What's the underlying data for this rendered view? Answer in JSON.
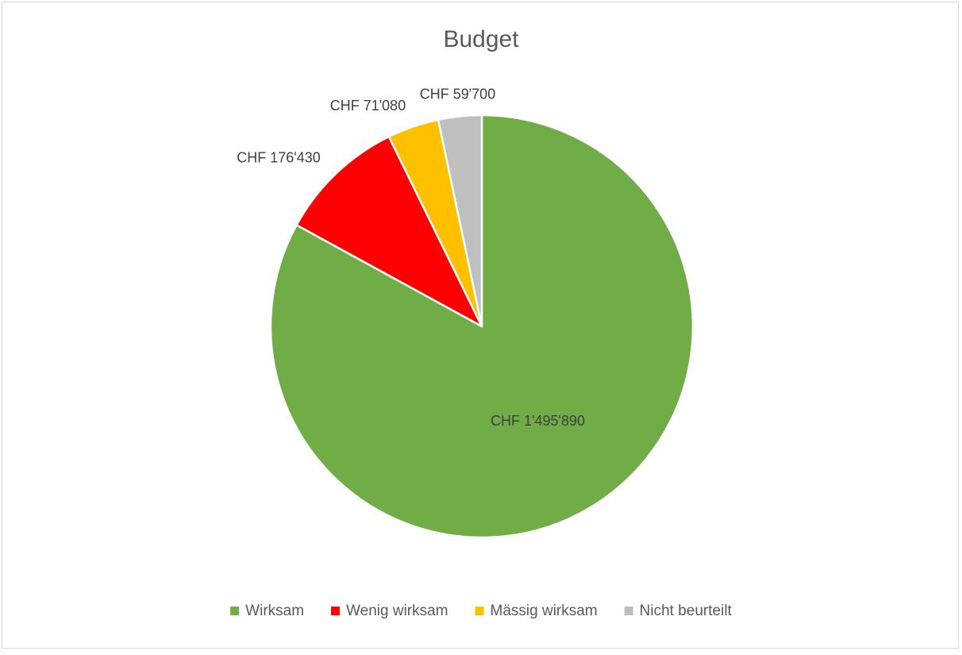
{
  "chart_data": {
    "type": "pie",
    "title": "Budget",
    "categories": [
      "Wirksam",
      "Wenig wirksam",
      "Mässig wirksam",
      "Nicht beurteilt"
    ],
    "values": [
      1495890,
      176430,
      71080,
      59700
    ],
    "data_labels": [
      "CHF 1'495'890",
      "CHF 176'430",
      "CHF 71'080",
      "CHF 59'700"
    ],
    "colors": [
      "#70ad47",
      "#ff0000",
      "#ffc000",
      "#bfbfbf"
    ],
    "start_angle": "12 o'clock",
    "direction": "clockwise",
    "legend_position": "bottom"
  }
}
